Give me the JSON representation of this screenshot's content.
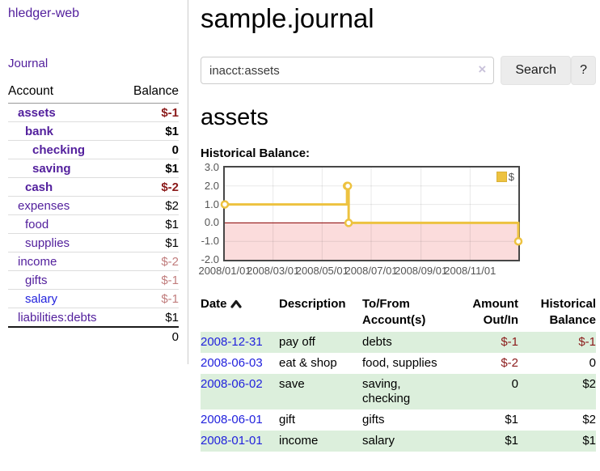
{
  "app": {
    "title": "hledger-web"
  },
  "sidebar": {
    "journal_label": "Journal",
    "accounts_table": {
      "headers": {
        "account": "Account",
        "balance": "Balance"
      },
      "rows": [
        {
          "name": "assets",
          "balance": "$-1",
          "indent": 1,
          "bold": true,
          "neg": "strong"
        },
        {
          "name": "bank",
          "balance": "$1",
          "indent": 2,
          "bold": true,
          "neg": "none"
        },
        {
          "name": "checking",
          "balance": "0",
          "indent": 3,
          "bold": true,
          "neg": "none"
        },
        {
          "name": "saving",
          "balance": "$1",
          "indent": 3,
          "bold": true,
          "neg": "none"
        },
        {
          "name": "cash",
          "balance": "$-2",
          "indent": 2,
          "bold": true,
          "neg": "strong"
        },
        {
          "name": "expenses",
          "balance": "$2",
          "indent": 1,
          "bold": false,
          "neg": "none"
        },
        {
          "name": "food",
          "balance": "$1",
          "indent": 2,
          "bold": false,
          "neg": "none"
        },
        {
          "name": "supplies",
          "balance": "$1",
          "indent": 2,
          "bold": false,
          "neg": "none"
        },
        {
          "name": "income",
          "balance": "$-2",
          "indent": 1,
          "bold": false,
          "neg": "faded"
        },
        {
          "name": "gifts",
          "balance": "$-1",
          "indent": 2,
          "bold": false,
          "neg": "faded"
        },
        {
          "name": "salary",
          "balance": "$-1",
          "indent": 2,
          "bold": false,
          "neg": "faded",
          "link": "blue"
        },
        {
          "name": "liabilities:debts",
          "balance": "$1",
          "indent": 1,
          "bold": false,
          "neg": "none"
        }
      ],
      "total": "0"
    }
  },
  "main": {
    "title": "sample.journal",
    "search": {
      "value": "inacct:assets",
      "clear_icon": "×",
      "button_label": "Search",
      "help_label": "?"
    },
    "account_heading": "assets",
    "chart_label": "Historical Balance:",
    "register": {
      "headers": [
        {
          "label": "Date",
          "sublabel": "",
          "align": "left",
          "sort": "asc"
        },
        {
          "label": "Description",
          "sublabel": "",
          "align": "left"
        },
        {
          "label": "To/From",
          "sublabel": "Account(s)",
          "align": "left"
        },
        {
          "label": "Amount",
          "sublabel": "Out/In",
          "align": "right"
        },
        {
          "label": "Historical",
          "sublabel": "Balance",
          "align": "right"
        }
      ],
      "rows": [
        {
          "date": "2008-12-31",
          "description": "pay off",
          "accounts": "debts",
          "amount": "$-1",
          "balance": "$-1"
        },
        {
          "date": "2008-06-03",
          "description": "eat & shop",
          "accounts": "food, supplies",
          "amount": "$-2",
          "balance": "0"
        },
        {
          "date": "2008-06-02",
          "description": "save",
          "accounts": "saving, checking",
          "amount": "0",
          "balance": "$2"
        },
        {
          "date": "2008-06-01",
          "description": "gift",
          "accounts": "gifts",
          "amount": "$1",
          "balance": "$2"
        },
        {
          "date": "2008-01-01",
          "description": "income",
          "accounts": "salary",
          "amount": "$1",
          "balance": "$1"
        }
      ]
    }
  },
  "chart_data": {
    "type": "line",
    "title": "Historical Balance",
    "step": true,
    "x_range": [
      "2008-01-01",
      "2008-12-31"
    ],
    "x_ticks": [
      "2008/01/01",
      "2008/03/01",
      "2008/05/01",
      "2008/07/01",
      "2008/09/01",
      "2008/11/01"
    ],
    "y_ticks": [
      3.0,
      2.0,
      1.0,
      0.0,
      -1.0,
      -2.0
    ],
    "ylim": [
      -2,
      3
    ],
    "series": [
      {
        "name": "$",
        "color": "#edc240",
        "points": [
          [
            "2008-01-01",
            1
          ],
          [
            "2008-06-01",
            2
          ],
          [
            "2008-06-02",
            2
          ],
          [
            "2008-06-03",
            0
          ],
          [
            "2008-12-31",
            -1
          ]
        ]
      }
    ],
    "legend": {
      "position": "ne",
      "label": "$"
    },
    "colors": {
      "negative_region": "#fbdcdc",
      "zero_line": "#8b0000",
      "grid_border": "#474747",
      "grid_line": "rgba(0,0,0,0.09)",
      "tick_text": "#545454"
    }
  }
}
